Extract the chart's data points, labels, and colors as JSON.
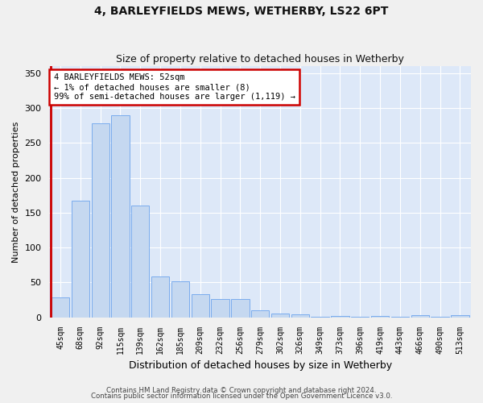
{
  "title": "4, BARLEYFIELDS MEWS, WETHERBY, LS22 6PT",
  "subtitle": "Size of property relative to detached houses in Wetherby",
  "xlabel": "Distribution of detached houses by size in Wetherby",
  "ylabel": "Number of detached properties",
  "categories": [
    "45sqm",
    "68sqm",
    "92sqm",
    "115sqm",
    "139sqm",
    "162sqm",
    "185sqm",
    "209sqm",
    "232sqm",
    "256sqm",
    "279sqm",
    "302sqm",
    "326sqm",
    "349sqm",
    "373sqm",
    "396sqm",
    "419sqm",
    "443sqm",
    "466sqm",
    "490sqm",
    "513sqm"
  ],
  "values": [
    29,
    167,
    278,
    290,
    160,
    58,
    52,
    33,
    26,
    26,
    10,
    6,
    4,
    1,
    2,
    1,
    2,
    1,
    3,
    1,
    3
  ],
  "bar_color": "#c5d8f0",
  "bar_edge_color": "#7aaced",
  "annotation_text": "4 BARLEYFIELDS MEWS: 52sqm\n← 1% of detached houses are smaller (8)\n99% of semi-detached houses are larger (1,119) →",
  "annotation_box_color": "#ffffff",
  "annotation_edge_color": "#cc0000",
  "red_line_color": "#cc0000",
  "bg_color": "#dde8f8",
  "grid_color": "#ffffff",
  "ylim": [
    0,
    360
  ],
  "yticks": [
    0,
    50,
    100,
    150,
    200,
    250,
    300,
    350
  ],
  "footer_line1": "Contains HM Land Registry data © Crown copyright and database right 2024.",
  "footer_line2": "Contains public sector information licensed under the Open Government Licence v3.0.",
  "title_fontsize": 10,
  "subtitle_fontsize": 9,
  "annotation_fontsize": 7.5,
  "fig_bg_color": "#f0f0f0"
}
